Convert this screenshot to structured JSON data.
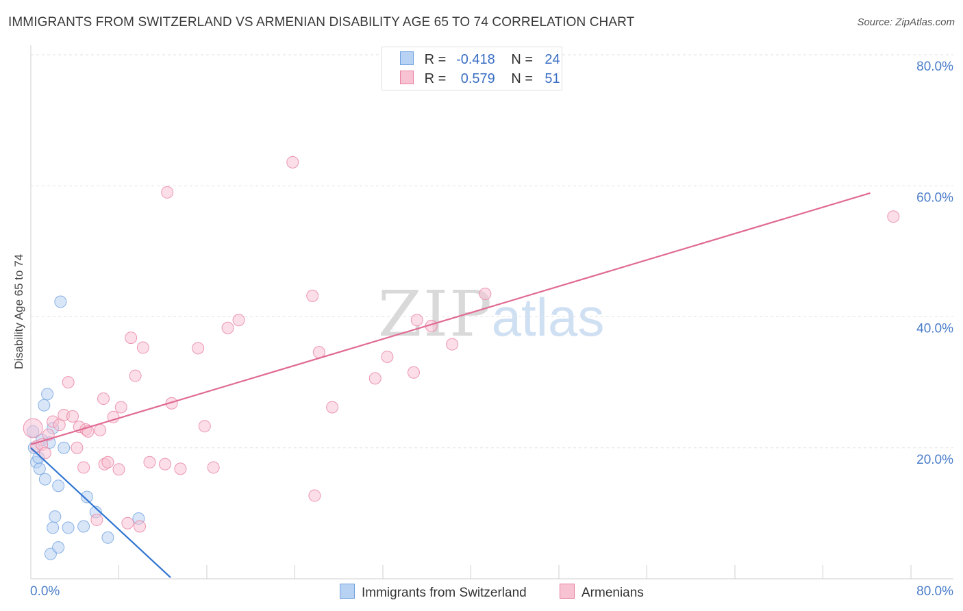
{
  "chart_data": {
    "type": "scatter",
    "title": "IMMIGRANTS FROM SWITZERLAND VS ARMENIAN DISABILITY AGE 65 TO 74 CORRELATION CHART",
    "source": "Source: ZipAtlas.com",
    "ylabel": "Disability Age 65 to 74",
    "xlim": [
      0,
      80
    ],
    "ylim": [
      0,
      80
    ],
    "x_tick_labels": [
      "0.0%",
      "80.0%"
    ],
    "y_tick_labels": [
      "20.0%",
      "40.0%",
      "60.0%",
      "80.0%"
    ],
    "y_ticks": [
      20,
      40,
      60,
      80
    ],
    "watermark": {
      "zip": "ZIP",
      "atlas": "atlas"
    },
    "series": [
      {
        "name": "Immigrants from Switzerland",
        "color": "#6fa0e0",
        "fill": "#b8d2f3",
        "R": "-0.418",
        "N": "24",
        "trend": {
          "x0": 0,
          "y0": 20.0,
          "x1": 12.7,
          "y1": 0.2
        },
        "points": [
          [
            0.2,
            22.5
          ],
          [
            0.3,
            20.0
          ],
          [
            0.5,
            17.8
          ],
          [
            0.7,
            18.5
          ],
          [
            0.8,
            16.8
          ],
          [
            1.0,
            21.2
          ],
          [
            1.2,
            26.5
          ],
          [
            1.3,
            15.2
          ],
          [
            1.5,
            28.2
          ],
          [
            1.7,
            20.8
          ],
          [
            2.0,
            23.0
          ],
          [
            2.2,
            9.5
          ],
          [
            2.5,
            14.2
          ],
          [
            2.7,
            42.3
          ],
          [
            2.0,
            7.8
          ],
          [
            1.8,
            3.8
          ],
          [
            2.5,
            4.8
          ],
          [
            3.4,
            7.8
          ],
          [
            4.8,
            8.0
          ],
          [
            5.1,
            12.5
          ],
          [
            5.9,
            10.2
          ],
          [
            7.0,
            6.3
          ],
          [
            9.8,
            9.2
          ],
          [
            3.0,
            20.0
          ]
        ]
      },
      {
        "name": "Armenians",
        "color": "#e87fa0",
        "fill": "#f7c3d3",
        "R": "0.579",
        "N": "51",
        "trend": {
          "x0": 0,
          "y0": 20.5,
          "x1": 76.3,
          "y1": 58.9
        },
        "points": [
          [
            0.2,
            23.0
          ],
          [
            0.5,
            20.2
          ],
          [
            1.0,
            20.5
          ],
          [
            1.3,
            19.2
          ],
          [
            1.6,
            22.0
          ],
          [
            2.0,
            24.0
          ],
          [
            2.6,
            23.5
          ],
          [
            3.0,
            25.0
          ],
          [
            3.4,
            30.0
          ],
          [
            3.8,
            24.8
          ],
          [
            4.2,
            20.0
          ],
          [
            4.4,
            23.2
          ],
          [
            4.8,
            17.0
          ],
          [
            5.0,
            22.8
          ],
          [
            5.2,
            22.5
          ],
          [
            6.0,
            9.0
          ],
          [
            6.6,
            27.5
          ],
          [
            6.7,
            17.5
          ],
          [
            7.0,
            17.8
          ],
          [
            7.5,
            24.7
          ],
          [
            8.2,
            26.2
          ],
          [
            8.0,
            16.7
          ],
          [
            8.8,
            8.5
          ],
          [
            9.1,
            36.8
          ],
          [
            9.5,
            31.0
          ],
          [
            9.9,
            8.0
          ],
          [
            10.2,
            35.3
          ],
          [
            10.8,
            17.8
          ],
          [
            12.2,
            17.5
          ],
          [
            12.4,
            59.0
          ],
          [
            12.8,
            26.8
          ],
          [
            13.6,
            16.8
          ],
          [
            15.2,
            35.2
          ],
          [
            15.8,
            23.3
          ],
          [
            16.6,
            17.0
          ],
          [
            17.9,
            38.3
          ],
          [
            18.9,
            39.5
          ],
          [
            23.8,
            63.6
          ],
          [
            25.6,
            43.2
          ],
          [
            25.8,
            12.7
          ],
          [
            26.2,
            34.6
          ],
          [
            27.4,
            26.2
          ],
          [
            31.3,
            30.6
          ],
          [
            32.4,
            33.9
          ],
          [
            34.8,
            31.5
          ],
          [
            35.1,
            39.5
          ],
          [
            36.4,
            38.6
          ],
          [
            38.3,
            35.8
          ],
          [
            41.3,
            43.5
          ],
          [
            78.4,
            55.3
          ],
          [
            6.3,
            22.7
          ]
        ]
      }
    ]
  },
  "legend": {
    "r_label": "R =",
    "n_label": "N ="
  }
}
